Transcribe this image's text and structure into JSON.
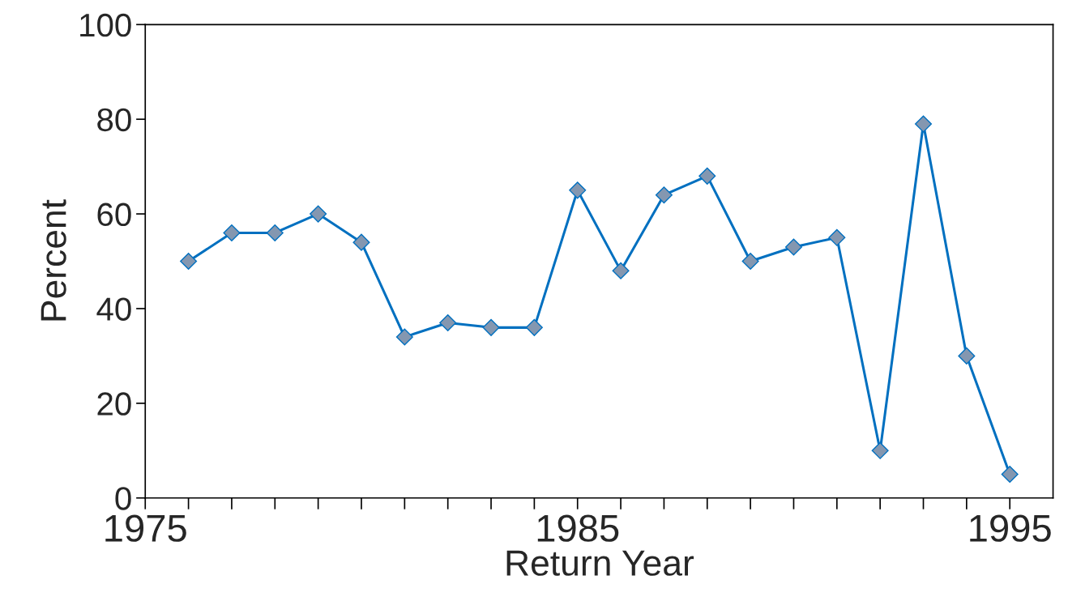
{
  "chart_data": {
    "type": "line",
    "xlabel": "Return Year",
    "ylabel": "Percent",
    "x": [
      1976,
      1977,
      1978,
      1979,
      1980,
      1981,
      1982,
      1983,
      1984,
      1985,
      1986,
      1987,
      1988,
      1989,
      1990,
      1991,
      1992,
      1993,
      1994,
      1995
    ],
    "series": [
      {
        "color": "#0070c0",
        "values": [
          50,
          56,
          56,
          60,
          54,
          34,
          37,
          36,
          36,
          65,
          48,
          64,
          68,
          50,
          53,
          55,
          10,
          79,
          30,
          5
        ]
      }
    ],
    "xlim": [
      1975,
      1996
    ],
    "xticks": [
      1975,
      {
        "value": 1976,
        "label": null
      },
      {
        "value": 1977,
        "label": null
      },
      {
        "value": 1978,
        "label": null
      },
      {
        "value": 1979,
        "label": null
      },
      {
        "value": 1980,
        "label": null
      },
      {
        "value": 1981,
        "label": null
      },
      {
        "value": 1982,
        "label": null
      },
      {
        "value": 1983,
        "label": null
      },
      {
        "value": 1984,
        "label": null
      },
      1985,
      {
        "value": 1986,
        "label": null
      },
      {
        "value": 1987,
        "label": null
      },
      {
        "value": 1988,
        "label": null
      },
      {
        "value": 1989,
        "label": null
      },
      {
        "value": 1990,
        "label": null
      },
      {
        "value": 1991,
        "label": null
      },
      {
        "value": 1992,
        "label": null
      },
      {
        "value": 1993,
        "label": null
      },
      {
        "value": 1994,
        "label": null
      },
      1995
    ],
    "ylim": [
      0,
      100
    ],
    "yticks": [
      0,
      20,
      40,
      60,
      80,
      100
    ],
    "grid": false,
    "marker": "diamond",
    "line_style": "solid"
  }
}
